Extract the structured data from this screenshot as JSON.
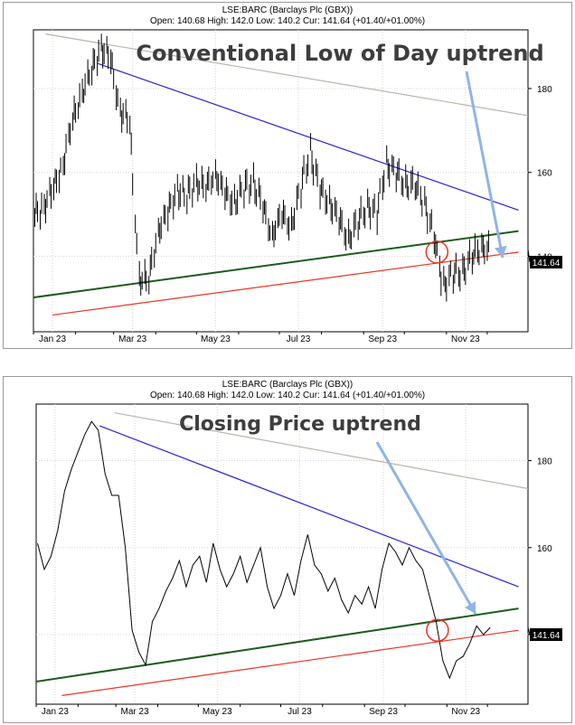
{
  "charts": [
    {
      "header_line1": "LSE:BARC (Barclays Plc (GBX))",
      "header_line2": "Open: 140.68 High: 142.0 Low: 140.2 Cur: 141.64 (+01.40/+01.00%)",
      "annotation": "Conventional Low of Day uptrend",
      "price_tag": "141.64"
    },
    {
      "header_line1": "LSE:BARC (Barclays Plc (GBX))",
      "header_line2": "Open: 140.68 High: 142.0 Low: 140.2 Cur: 141.64 (+01.40/+01.00%)",
      "annotation": "Closing Price uptrend",
      "price_tag": "141.64"
    }
  ],
  "chart_data": [
    {
      "type": "bar",
      "style": "OHLC price bars",
      "title": "LSE:BARC (Barclays Plc (GBX))",
      "annotation": "Conventional Low of Day uptrend",
      "x_ticks": [
        "Jan 23",
        "Mar 23",
        "May 23",
        "Jul 23",
        "Sep 23",
        "Nov 23"
      ],
      "y_ticks": [
        140,
        160,
        180
      ],
      "current_price": 141.64,
      "grid": true,
      "colors": {
        "bars": "#000000",
        "downtrend": "#2222dd",
        "uptrend_low_of_day": "#1c5c1c",
        "uptrend_support": "#ee3322",
        "long_trend": "#bbb3a8",
        "arrow": "#8fb4e8",
        "circle": "#ee3322"
      },
      "series": [
        {
          "name": "LSE:BARC",
          "points": [
            [
              "2023-01-02",
              150
            ],
            [
              "2023-01-09",
              152
            ],
            [
              "2023-01-16",
              156
            ],
            [
              "2023-01-23",
              162
            ],
            [
              "2023-01-30",
              172
            ],
            [
              "2023-02-06",
              179
            ],
            [
              "2023-02-13",
              184
            ],
            [
              "2023-02-20",
              190
            ],
            [
              "2023-02-27",
              187
            ],
            [
              "2023-03-06",
              175
            ],
            [
              "2023-03-13",
              172
            ],
            [
              "2023-03-20",
              135
            ],
            [
              "2023-03-27",
              134
            ],
            [
              "2023-04-03",
              146
            ],
            [
              "2023-04-10",
              150
            ],
            [
              "2023-04-17",
              156
            ],
            [
              "2023-04-24",
              154
            ],
            [
              "2023-05-01",
              158
            ],
            [
              "2023-05-08",
              156
            ],
            [
              "2023-05-15",
              160
            ],
            [
              "2023-05-22",
              155
            ],
            [
              "2023-05-29",
              153
            ],
            [
              "2023-06-05",
              156
            ],
            [
              "2023-06-12",
              158
            ],
            [
              "2023-06-19",
              152
            ],
            [
              "2023-06-26",
              145
            ],
            [
              "2023-07-03",
              150
            ],
            [
              "2023-07-10",
              147
            ],
            [
              "2023-07-17",
              156
            ],
            [
              "2023-07-24",
              165
            ],
            [
              "2023-07-31",
              156
            ],
            [
              "2023-08-07",
              153
            ],
            [
              "2023-08-14",
              149
            ],
            [
              "2023-08-21",
              144
            ],
            [
              "2023-08-28",
              148
            ],
            [
              "2023-09-04",
              152
            ],
            [
              "2023-09-11",
              150
            ],
            [
              "2023-09-18",
              162
            ],
            [
              "2023-09-25",
              160
            ],
            [
              "2023-10-02",
              157
            ],
            [
              "2023-10-09",
              157
            ],
            [
              "2023-10-16",
              153
            ],
            [
              "2023-10-23",
              145
            ],
            [
              "2023-10-30",
              133
            ],
            [
              "2023-11-06",
              136
            ],
            [
              "2023-11-13",
              136
            ],
            [
              "2023-11-20",
              140
            ],
            [
              "2023-11-27",
              142
            ],
            [
              "2023-12-04",
              141.64
            ]
          ]
        }
      ],
      "trendlines": [
        {
          "kind": "downtrend",
          "from": [
            "2023-02-17",
            186
          ],
          "to": [
            "2023-12-24",
            151
          ]
        },
        {
          "kind": "uptrend_low_of_day",
          "from": [
            "2022-12-28",
            130
          ],
          "to": [
            "2023-12-24",
            146
          ]
        },
        {
          "kind": "uptrend_support",
          "from": [
            "2023-01-15",
            126
          ],
          "to": [
            "2023-12-24",
            141
          ]
        },
        {
          "kind": "long_trend",
          "from": [
            "2023-01-10",
            193
          ],
          "to": [
            "2024-01-10",
            173
          ]
        }
      ]
    },
    {
      "type": "line",
      "title": "LSE:BARC (Barclays Plc (GBX))",
      "annotation": "Closing Price uptrend",
      "x_ticks": [
        "Jan 23",
        "Mar 23",
        "May 23",
        "Jul 23",
        "Sep 23",
        "Nov 23"
      ],
      "y_ticks": [
        140,
        160,
        180
      ],
      "current_price": 141.64,
      "grid": true,
      "colors": {
        "line": "#000000",
        "downtrend": "#2222dd",
        "uptrend_close": "#1c5c1c",
        "uptrend_support": "#ee3322",
        "long_trend": "#bbb3a8",
        "arrow": "#8fb4e8",
        "circle": "#ee3322"
      },
      "series": [
        {
          "name": "LSE:BARC",
          "points": [
            [
              "2023-01-02",
              161
            ],
            [
              "2023-01-07",
              155
            ],
            [
              "2023-01-12",
              158
            ],
            [
              "2023-01-17",
              164
            ],
            [
              "2023-01-22",
              173
            ],
            [
              "2023-01-27",
              178
            ],
            [
              "2023-02-01",
              182
            ],
            [
              "2023-02-06",
              186
            ],
            [
              "2023-02-11",
              189
            ],
            [
              "2023-02-16",
              187
            ],
            [
              "2023-02-21",
              177
            ],
            [
              "2023-02-26",
              172
            ],
            [
              "2023-03-03",
              172
            ],
            [
              "2023-03-08",
              160
            ],
            [
              "2023-03-13",
              141
            ],
            [
              "2023-03-18",
              136
            ],
            [
              "2023-03-23",
              133
            ],
            [
              "2023-03-28",
              143
            ],
            [
              "2023-04-02",
              146
            ],
            [
              "2023-04-07",
              150
            ],
            [
              "2023-04-12",
              153
            ],
            [
              "2023-04-17",
              157
            ],
            [
              "2023-04-22",
              151
            ],
            [
              "2023-04-27",
              156
            ],
            [
              "2023-05-02",
              158
            ],
            [
              "2023-05-07",
              152
            ],
            [
              "2023-05-12",
              161
            ],
            [
              "2023-05-17",
              155
            ],
            [
              "2023-05-22",
              151
            ],
            [
              "2023-05-27",
              154
            ],
            [
              "2023-06-01",
              158
            ],
            [
              "2023-06-06",
              152
            ],
            [
              "2023-06-11",
              156
            ],
            [
              "2023-06-16",
              160
            ],
            [
              "2023-06-21",
              151
            ],
            [
              "2023-06-26",
              146
            ],
            [
              "2023-07-01",
              149
            ],
            [
              "2023-07-06",
              154
            ],
            [
              "2023-07-11",
              149
            ],
            [
              "2023-07-16",
              157
            ],
            [
              "2023-07-21",
              163
            ],
            [
              "2023-07-26",
              156
            ],
            [
              "2023-07-31",
              154
            ],
            [
              "2023-08-05",
              150
            ],
            [
              "2023-08-10",
              153
            ],
            [
              "2023-08-15",
              148
            ],
            [
              "2023-08-20",
              145
            ],
            [
              "2023-08-25",
              149
            ],
            [
              "2023-08-30",
              147
            ],
            [
              "2023-09-04",
              151
            ],
            [
              "2023-09-09",
              146
            ],
            [
              "2023-09-14",
              155
            ],
            [
              "2023-09-19",
              161
            ],
            [
              "2023-09-24",
              159
            ],
            [
              "2023-09-29",
              156
            ],
            [
              "2023-10-04",
              160
            ],
            [
              "2023-10-09",
              157
            ],
            [
              "2023-10-14",
              155
            ],
            [
              "2023-10-19",
              149
            ],
            [
              "2023-10-24",
              143
            ],
            [
              "2023-10-29",
              134
            ],
            [
              "2023-11-03",
              130
            ],
            [
              "2023-11-08",
              134
            ],
            [
              "2023-11-13",
              135
            ],
            [
              "2023-11-18",
              138
            ],
            [
              "2023-11-23",
              142
            ],
            [
              "2023-11-28",
              140
            ],
            [
              "2023-12-03",
              141.64
            ]
          ]
        }
      ],
      "trendlines": [
        {
          "kind": "downtrend",
          "from": [
            "2023-02-17",
            188
          ],
          "to": [
            "2023-12-24",
            151
          ]
        },
        {
          "kind": "uptrend_close",
          "from": [
            "2022-12-28",
            129
          ],
          "to": [
            "2023-12-24",
            146
          ]
        },
        {
          "kind": "uptrend_support",
          "from": [
            "2023-01-20",
            126
          ],
          "to": [
            "2023-12-24",
            141
          ]
        },
        {
          "kind": "long_trend",
          "from": [
            "2023-02-28",
            191
          ],
          "to": [
            "2024-01-10",
            173
          ]
        }
      ]
    }
  ]
}
